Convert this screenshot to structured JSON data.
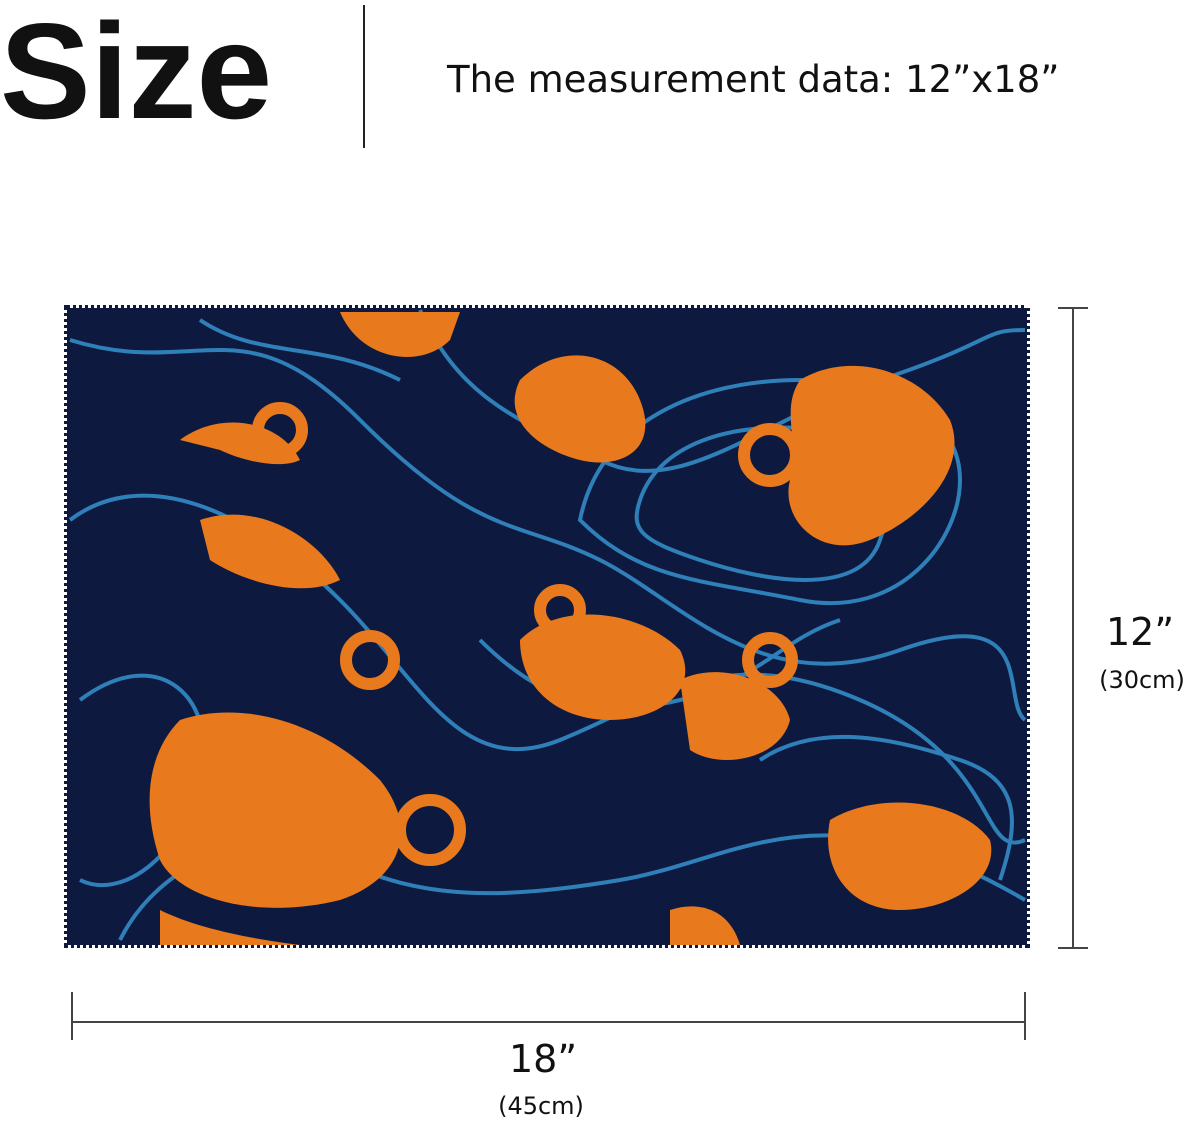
{
  "header": {
    "title": "Size",
    "subtitle": "The measurement data: 12”x18”"
  },
  "dimensions": {
    "height": {
      "label": "12”",
      "metric": "(30cm)"
    },
    "width": {
      "label": "18”",
      "metric": "(45cm)"
    }
  }
}
